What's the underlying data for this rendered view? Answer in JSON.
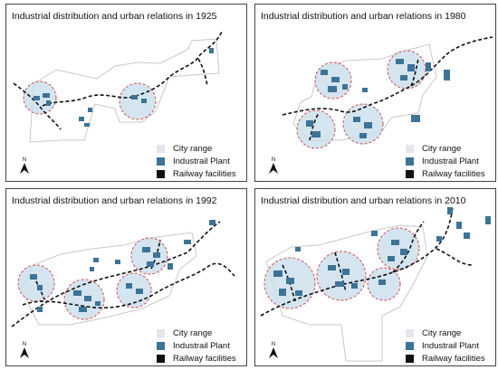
{
  "colors": {
    "plant": "#3d7396",
    "circle_fill": "#c9dfec",
    "circle_stroke": "#d4505a",
    "city_outline": "#c8c8c8",
    "railway": "#111111"
  },
  "panels": [
    {
      "title": "Industrial distribution and urban relations in 1925"
    },
    {
      "title": "Industrial distribution and urban relations in 1980"
    },
    {
      "title": "Industrial distribution and urban relations in 1992"
    },
    {
      "title": "Industrial distribution and urban relations in 2010"
    }
  ],
  "legend": {
    "city": "City range",
    "plant": "Industrail Plant",
    "rail": "Railway facilities"
  },
  "north": {
    "label": "N",
    "icon": "north-arrow-icon"
  }
}
